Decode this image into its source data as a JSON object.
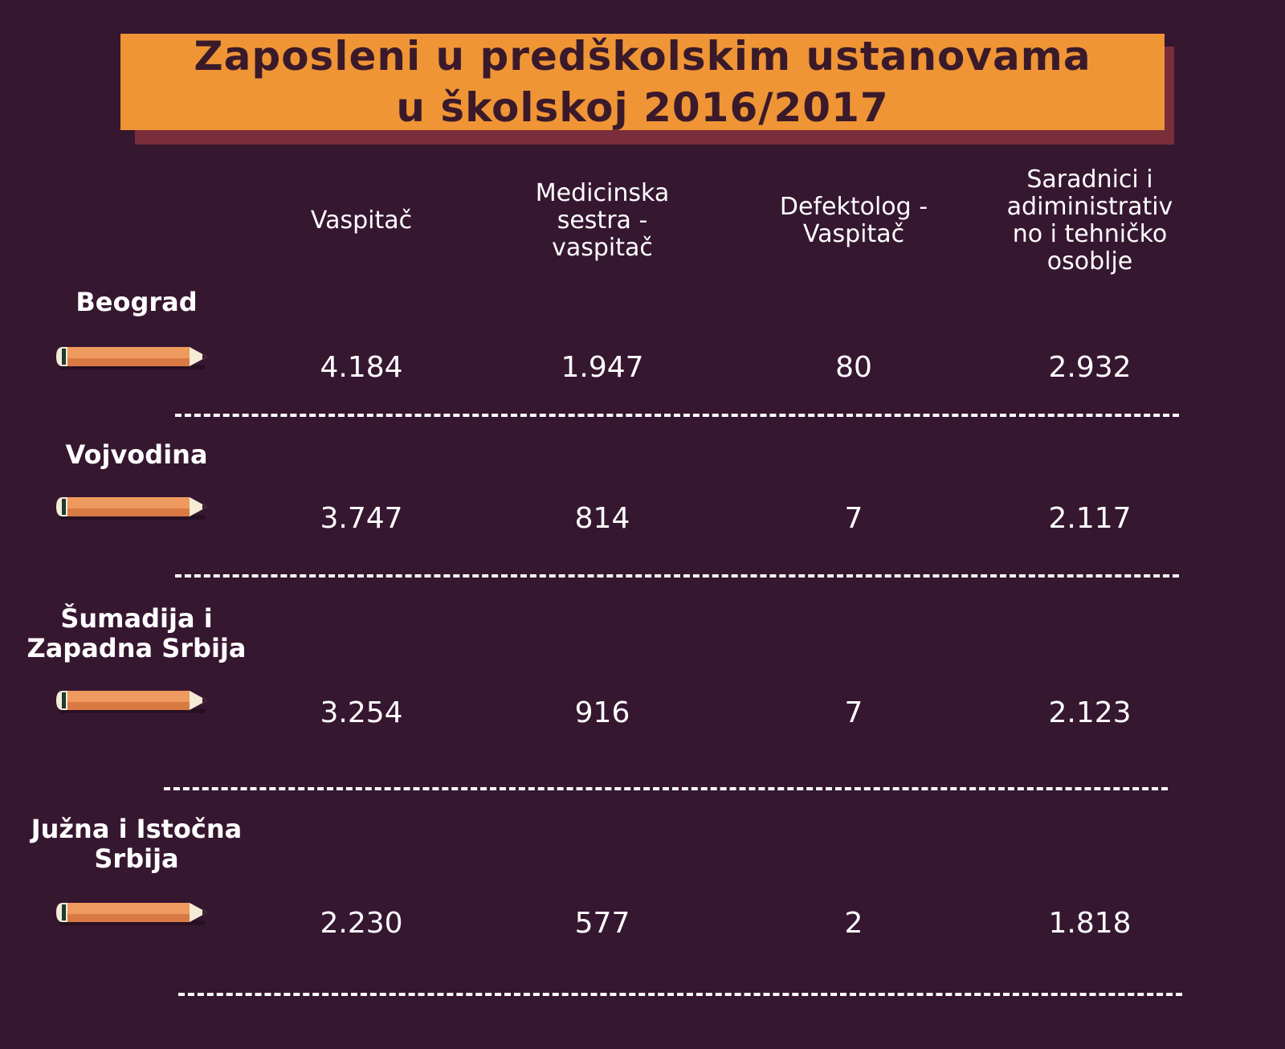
{
  "chart_data": {
    "type": "table",
    "title_lines": [
      "Zaposleni u predškolskim ustanovama",
      "u školskoj 2016/2017"
    ],
    "columns": [
      "Vaspitač",
      "Medicinska sestra - vaspitač",
      "Defektolog - Vaspitač",
      "Saradnici i adiministrativno i tehničko osoblje"
    ],
    "column_header_lines": [
      [
        "Vaspitač"
      ],
      [
        "Medicinska",
        "sestra -",
        "vaspitač"
      ],
      [
        "Defektolog -",
        "Vaspitač"
      ],
      [
        "Saradnici i",
        "adiministrativ",
        "no i tehničko",
        "osoblje"
      ]
    ],
    "rows": [
      {
        "region": "Beograd",
        "region_lines": [
          "Beograd"
        ],
        "values": [
          "4.184",
          "1.947",
          "80",
          "2.932"
        ]
      },
      {
        "region": "Vojvodina",
        "region_lines": [
          "Vojvodina"
        ],
        "values": [
          "3.747",
          "814",
          "7",
          "2.117"
        ]
      },
      {
        "region": "Šumadija i Zapadna Srbija",
        "region_lines": [
          "Šumadija i",
          "Zapadna Srbija"
        ],
        "values": [
          "3.254",
          "916",
          "7",
          "2.123"
        ]
      },
      {
        "region": "Južna i Istočna Srbija",
        "region_lines": [
          "Južna i Istočna",
          "Srbija"
        ],
        "values": [
          "2.230",
          "577",
          "2",
          "1.818"
        ]
      }
    ]
  },
  "colors": {
    "background": "#361730",
    "title_banner": "#ef9536",
    "title_shadow": "#7a2e3b",
    "title_text": "#3a1a2a",
    "text": "#ffffff",
    "pencil_body": "#ef9a5e",
    "pencil_tip": "#f4ecd6"
  },
  "icons": {
    "row_marker": "pencil-icon"
  }
}
